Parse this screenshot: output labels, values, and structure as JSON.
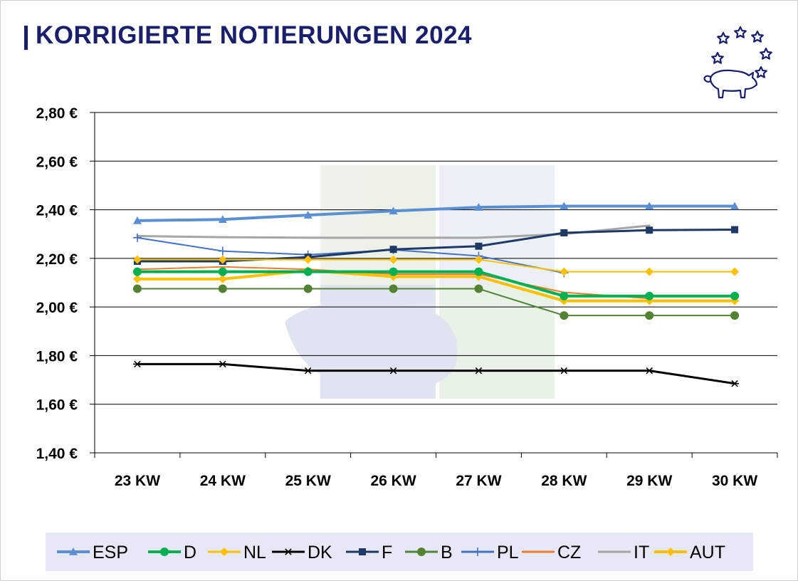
{
  "header": {
    "title": "KORRIGIERTE NOTIERUNGEN 2024"
  },
  "logo": {
    "icon": "pig-with-eu-stars-icon"
  },
  "chart_data": {
    "type": "line",
    "title": "KORRIGIERTE NOTIERUNGEN 2024",
    "categories": [
      "23 KW",
      "24 KW",
      "25 KW",
      "26 KW",
      "27 KW",
      "28 KW",
      "29 KW",
      "30 KW"
    ],
    "ylim": [
      1.4,
      2.8
    ],
    "yticks": [
      1.4,
      1.6,
      1.8,
      2.0,
      2.2,
      2.4,
      2.6,
      2.8
    ],
    "ytick_labels": [
      "1,40 €",
      "1,60 €",
      "1,80 €",
      "2,00 €",
      "2,20 €",
      "2,40 €",
      "2,60 €",
      "2,80 €"
    ],
    "grid": true,
    "legend_position": "bottom",
    "series": [
      {
        "name": "ESP",
        "color": "#5b8fd3",
        "marker": "triangle",
        "width": 4,
        "values": [
          2.355,
          2.36,
          2.378,
          2.395,
          2.41,
          2.415,
          2.415,
          2.415
        ]
      },
      {
        "name": "D",
        "color": "#00b050",
        "marker": "circle",
        "width": 4,
        "values": [
          2.145,
          2.145,
          2.145,
          2.145,
          2.145,
          2.045,
          2.045,
          2.045
        ]
      },
      {
        "name": "NL",
        "color": "#ffc000",
        "marker": "diamond",
        "width": 2,
        "values": [
          2.195,
          2.195,
          2.195,
          2.195,
          2.195,
          2.145,
          2.145,
          2.145
        ]
      },
      {
        "name": "DK",
        "color": "#000000",
        "marker": "star",
        "width": 3,
        "values": [
          1.765,
          1.765,
          1.738,
          1.738,
          1.738,
          1.738,
          1.738,
          1.685
        ]
      },
      {
        "name": "F",
        "color": "#1f3864",
        "marker": "square",
        "width": 3,
        "values": [
          2.188,
          2.188,
          2.205,
          2.237,
          2.25,
          2.305,
          2.316,
          2.318
        ]
      },
      {
        "name": "B",
        "color": "#548235",
        "marker": "circle",
        "width": 2,
        "values": [
          2.075,
          2.075,
          2.075,
          2.075,
          2.075,
          1.965,
          1.965,
          1.965
        ]
      },
      {
        "name": "PL",
        "color": "#4472c4",
        "marker": "plus",
        "width": 2,
        "values": [
          2.285,
          2.23,
          2.215,
          2.235,
          2.21,
          2.14,
          null,
          null
        ]
      },
      {
        "name": "CZ",
        "color": "#ed7d31",
        "marker": "none",
        "width": 2,
        "values": [
          2.155,
          2.165,
          2.155,
          2.135,
          2.135,
          2.06,
          2.035,
          null
        ]
      },
      {
        "name": "IT",
        "color": "#a5a5a5",
        "marker": "none",
        "width": 3,
        "values": [
          2.292,
          2.287,
          2.285,
          2.285,
          2.285,
          2.3,
          2.335,
          null
        ]
      },
      {
        "name": "AUT",
        "color": "#ffc000",
        "marker": "diamond",
        "width": 4,
        "values": [
          2.115,
          2.115,
          2.15,
          2.125,
          2.125,
          2.025,
          2.025,
          2.025
        ]
      }
    ]
  }
}
